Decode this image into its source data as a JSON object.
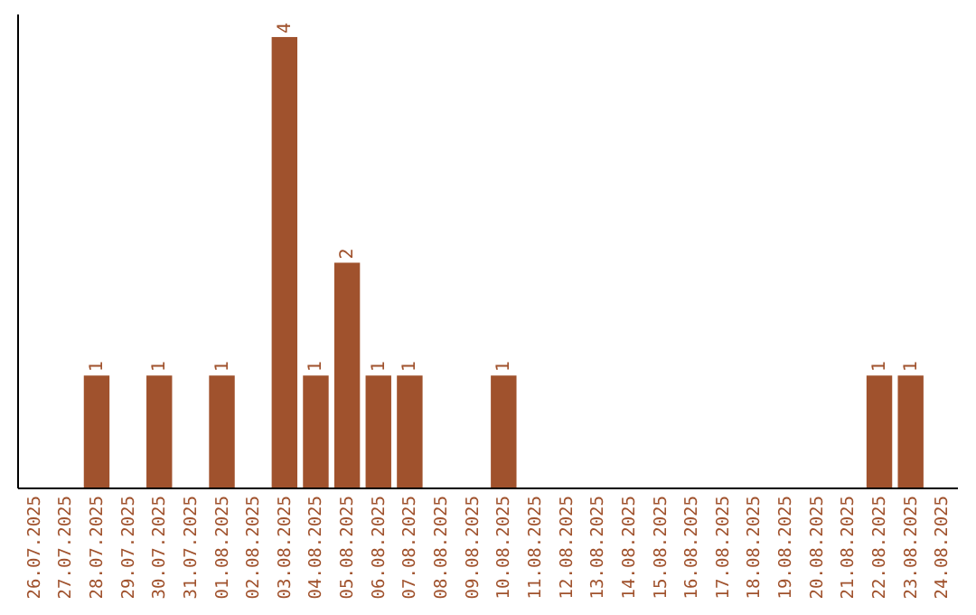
{
  "chart_data": {
    "type": "bar",
    "categories": [
      "26.07.2025",
      "27.07.2025",
      "28.07.2025",
      "29.07.2025",
      "30.07.2025",
      "31.07.2025",
      "01.08.2025",
      "02.08.2025",
      "03.08.2025",
      "04.08.2025",
      "05.08.2025",
      "06.08.2025",
      "07.08.2025",
      "08.08.2025",
      "09.08.2025",
      "10.08.2025",
      "11.08.2025",
      "12.08.2025",
      "13.08.2025",
      "14.08.2025",
      "15.08.2025",
      "16.08.2025",
      "17.08.2025",
      "18.08.2025",
      "19.08.2025",
      "20.08.2025",
      "21.08.2025",
      "22.08.2025",
      "23.08.2025",
      "24.08.2025"
    ],
    "values": [
      0,
      0,
      1,
      0,
      1,
      0,
      1,
      0,
      4,
      1,
      2,
      1,
      1,
      0,
      0,
      1,
      0,
      0,
      0,
      0,
      0,
      0,
      0,
      0,
      0,
      0,
      0,
      1,
      1,
      0
    ],
    "value_labels": [
      null,
      null,
      "1",
      null,
      "1",
      null,
      "1",
      null,
      "4",
      "1",
      "2",
      "1",
      "1",
      null,
      null,
      "1",
      null,
      null,
      null,
      null,
      null,
      null,
      null,
      null,
      null,
      null,
      null,
      "1",
      "1",
      null
    ],
    "color": "#a0522d",
    "ylim": [
      0,
      4.2
    ],
    "tick_labels": "x"
  }
}
